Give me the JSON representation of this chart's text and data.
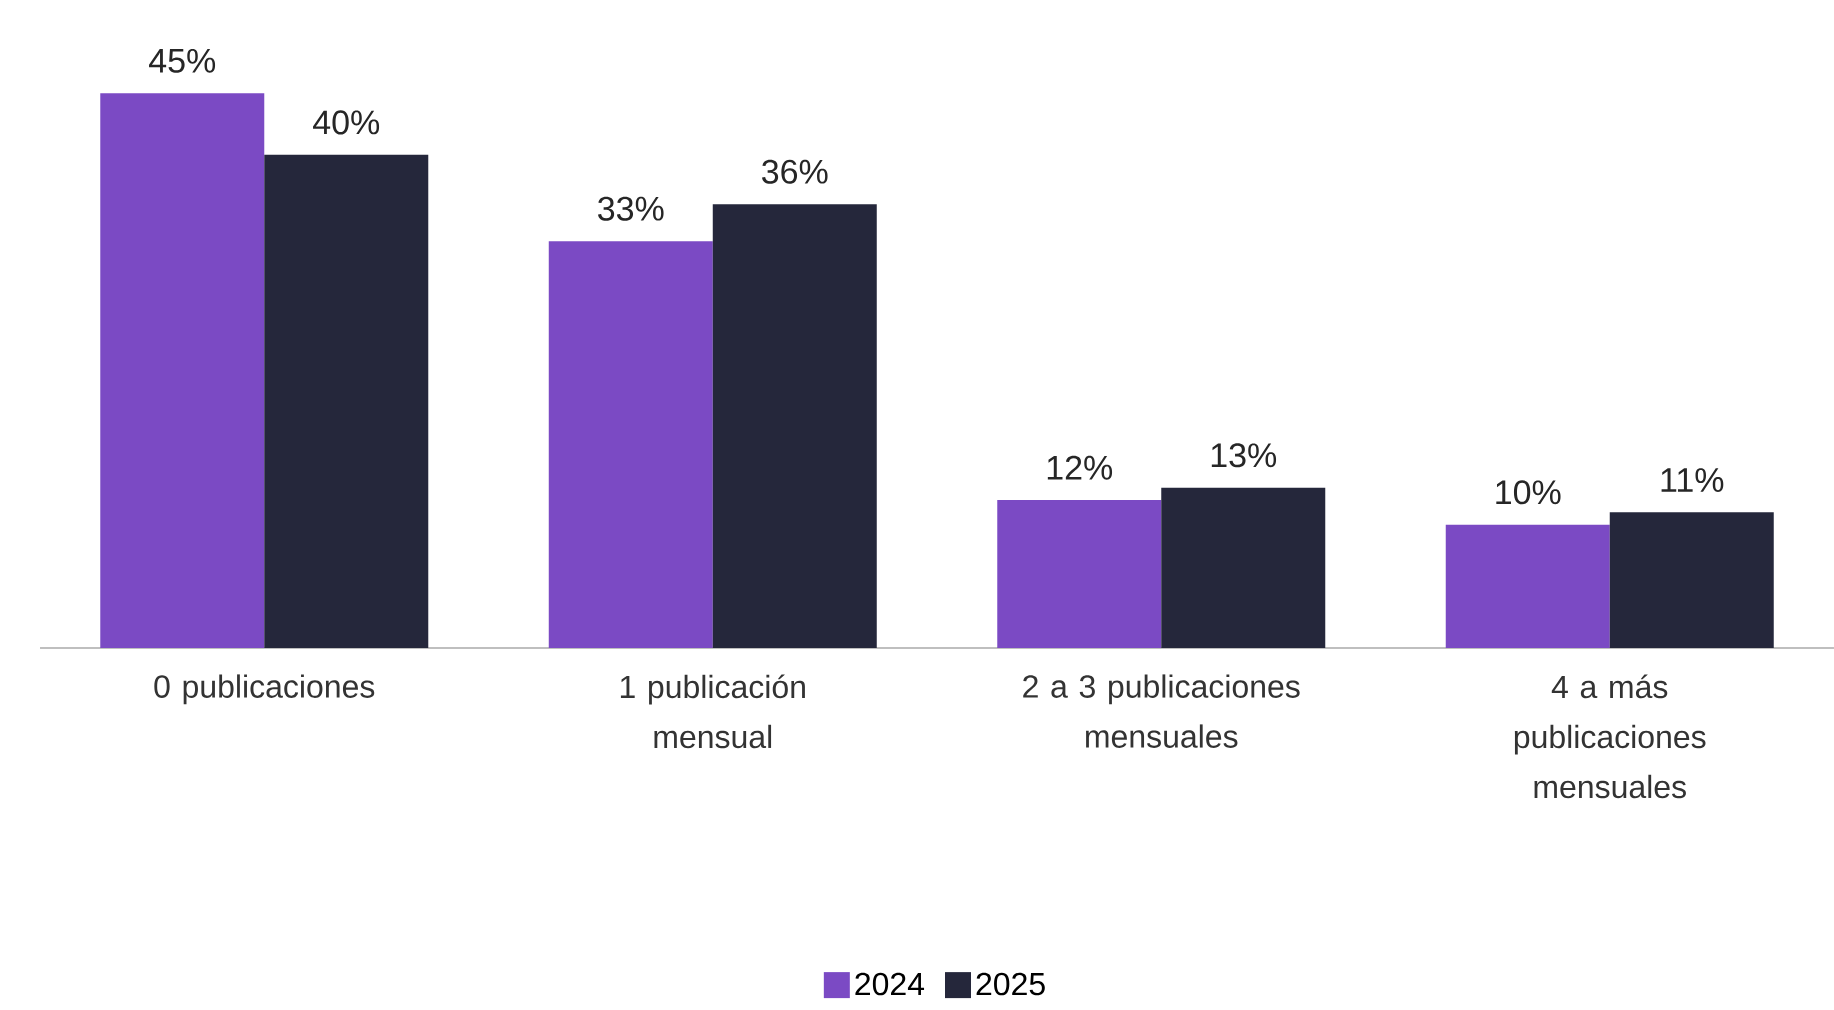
{
  "chart_data": {
    "type": "bar",
    "categories": [
      "0 publicaciones",
      "1 publicación mensual",
      "2 a 3 publicaciones mensuales",
      "4 a más publicaciones mensuales"
    ],
    "series": [
      {
        "name": "2024",
        "color": "#7b4ac4",
        "values": [
          45,
          33,
          12,
          10
        ],
        "value_labels": [
          "45%",
          "33%",
          "12%",
          "10%"
        ]
      },
      {
        "name": "2025",
        "color": "#25273b",
        "values": [
          40,
          36,
          13,
          11
        ],
        "value_labels": [
          "40%",
          "36%",
          "13%",
          "11%"
        ]
      }
    ],
    "legend": "bottom",
    "grid": false
  }
}
